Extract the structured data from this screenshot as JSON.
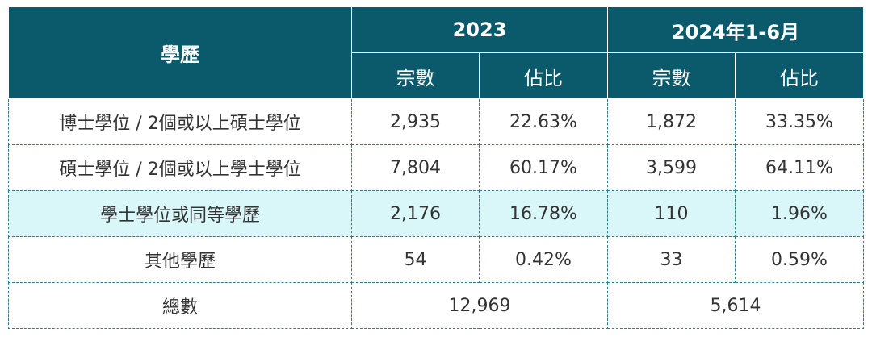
{
  "header": {
    "edu_label": "學歷",
    "year1": "2023",
    "year2": "2024年1-6月",
    "count_label": "宗數",
    "share_label": "佔比"
  },
  "rows": [
    {
      "edu": "博士學位 / 2個或以上碩士學位",
      "n2023": "2,935",
      "p2023": "22.63%",
      "n2024": "1,872",
      "p2024": "33.35%"
    },
    {
      "edu": "碩士學位 / 2個或以上學士學位",
      "n2023": "7,804",
      "p2023": "60.17%",
      "n2024": "3,599",
      "p2024": "64.11%"
    },
    {
      "edu": "學士學位或同等學歷",
      "n2023": "2,176",
      "p2023": "16.78%",
      "n2024": "110",
      "p2024": "1.96%"
    },
    {
      "edu": "其他學歷",
      "n2023": "54",
      "p2023": "0.42%",
      "n2024": "33",
      "p2024": "0.59%"
    }
  ],
  "total": {
    "label": "總數",
    "t2023": "12,969",
    "t2024": "5,614"
  },
  "colors": {
    "header_bg": "#0b5a6b",
    "highlight_row": "#d9f6f9",
    "border": "#2c7f8c"
  }
}
